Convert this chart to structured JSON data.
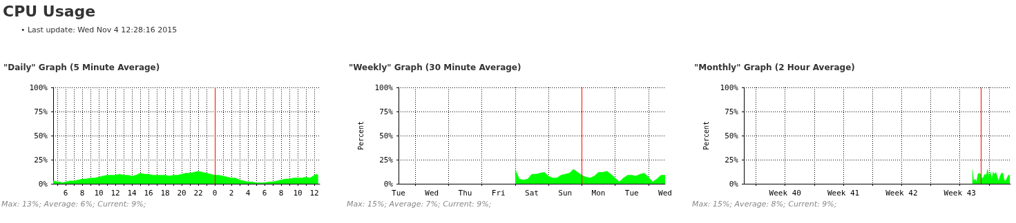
{
  "chart_data": [
    {
      "type": "other",
      "title": "CPU Usage",
      "annotations": [
        "• Last update: Wed Nov 4 12:28:16 2015"
      ]
    },
    {
      "type": "area",
      "title": "\"Daily\" Graph (5 Minute Average)",
      "color": "#00ff00",
      "grid": true,
      "xlim": [
        "2015-11-03T04:30",
        "2015-11-04T12:40"
      ],
      "ylim": [
        0,
        100
      ],
      "yticks": [
        {
          "value": 0,
          "label": "0%"
        },
        {
          "value": 25,
          "label": "25%"
        },
        {
          "value": 50,
          "label": "50%"
        },
        {
          "value": 75,
          "label": "75%"
        },
        {
          "value": 100,
          "label": "100%"
        }
      ],
      "xticks": [
        {
          "value": "2015-11-03T05:00",
          "label": null
        },
        {
          "value": "2015-11-03T06:00",
          "label": "6"
        },
        {
          "value": "2015-11-03T07:00",
          "label": null
        },
        {
          "value": "2015-11-03T08:00",
          "label": "8"
        },
        {
          "value": "2015-11-03T09:00",
          "label": null
        },
        {
          "value": "2015-11-03T10:00",
          "label": "10"
        },
        {
          "value": "2015-11-03T11:00",
          "label": null
        },
        {
          "value": "2015-11-03T12:00",
          "label": "12"
        },
        {
          "value": "2015-11-03T13:00",
          "label": null
        },
        {
          "value": "2015-11-03T14:00",
          "label": "14"
        },
        {
          "value": "2015-11-03T15:00",
          "label": null
        },
        {
          "value": "2015-11-03T16:00",
          "label": "16"
        },
        {
          "value": "2015-11-03T17:00",
          "label": null
        },
        {
          "value": "2015-11-03T18:00",
          "label": "18"
        },
        {
          "value": "2015-11-03T19:00",
          "label": null
        },
        {
          "value": "2015-11-03T20:00",
          "label": "20"
        },
        {
          "value": "2015-11-03T21:00",
          "label": null
        },
        {
          "value": "2015-11-03T22:00",
          "label": "22"
        },
        {
          "value": "2015-11-03T23:00",
          "label": null
        },
        {
          "value": "2015-11-04T00:00",
          "label": "0"
        },
        {
          "value": "2015-11-04T01:00",
          "label": null
        },
        {
          "value": "2015-11-04T02:00",
          "label": "2"
        },
        {
          "value": "2015-11-04T03:00",
          "label": null
        },
        {
          "value": "2015-11-04T04:00",
          "label": "4"
        },
        {
          "value": "2015-11-04T05:00",
          "label": null
        },
        {
          "value": "2015-11-04T06:00",
          "label": "6"
        },
        {
          "value": "2015-11-04T07:00",
          "label": null
        },
        {
          "value": "2015-11-04T08:00",
          "label": "8"
        },
        {
          "value": "2015-11-04T09:00",
          "label": null
        },
        {
          "value": "2015-11-04T10:00",
          "label": "10"
        },
        {
          "value": "2015-11-04T11:00",
          "label": null
        },
        {
          "value": "2015-11-04T12:00",
          "label": "12"
        }
      ],
      "x": [
        "2015-11-03T04:30",
        "2015-11-03T04:36",
        "2015-11-03T05:00",
        "2015-11-03T05:18",
        "2015-11-03T05:36",
        "2015-11-03T06:00",
        "2015-11-03T06:30",
        "2015-11-03T07:00",
        "2015-11-03T07:30",
        "2015-11-03T08:00",
        "2015-11-03T08:30",
        "2015-11-03T09:00",
        "2015-11-03T09:30",
        "2015-11-03T10:00",
        "2015-11-03T10:30",
        "2015-11-03T11:00",
        "2015-11-03T11:30",
        "2015-11-03T12:00",
        "2015-11-03T12:30",
        "2015-11-03T13:00",
        "2015-11-03T13:30",
        "2015-11-03T14:00",
        "2015-11-03T14:30",
        "2015-11-03T15:00",
        "2015-11-03T15:30",
        "2015-11-03T16:00",
        "2015-11-03T16:30",
        "2015-11-03T17:00",
        "2015-11-03T17:30",
        "2015-11-03T18:00",
        "2015-11-03T18:30",
        "2015-11-03T19:00",
        "2015-11-03T19:30",
        "2015-11-03T20:00",
        "2015-11-03T20:30",
        "2015-11-03T21:00",
        "2015-11-03T21:30",
        "2015-11-03T22:00",
        "2015-11-03T22:30",
        "2015-11-03T23:00",
        "2015-11-03T23:30",
        "2015-11-04T00:00",
        "2015-11-04T00:30",
        "2015-11-04T01:00",
        "2015-11-04T01:30",
        "2015-11-04T02:00",
        "2015-11-04T02:30",
        "2015-11-04T03:00",
        "2015-11-04T03:30",
        "2015-11-04T04:00",
        "2015-11-04T04:30",
        "2015-11-04T05:00",
        "2015-11-04T05:30",
        "2015-11-04T06:00",
        "2015-11-04T06:30",
        "2015-11-04T07:00",
        "2015-11-04T07:30",
        "2015-11-04T08:00",
        "2015-11-04T08:30",
        "2015-11-04T09:00",
        "2015-11-04T09:30",
        "2015-11-04T10:00",
        "2015-11-04T10:30",
        "2015-11-04T11:00",
        "2015-11-04T11:30",
        "2015-11-04T12:00",
        "2015-11-04T12:18",
        "2015-11-04T12:28"
      ],
      "values": [
        3,
        3,
        2,
        2,
        1,
        2,
        3,
        3,
        4,
        5,
        5,
        6,
        6,
        7,
        8,
        9,
        9,
        9,
        10,
        9,
        9,
        8,
        9,
        11,
        10,
        10,
        9,
        9,
        9,
        9,
        8,
        9,
        9,
        10,
        11,
        11,
        12,
        13,
        12,
        11,
        10,
        9,
        9,
        8,
        7,
        6,
        6,
        4,
        3,
        2,
        2,
        1,
        1,
        1,
        2,
        2,
        3,
        4,
        5,
        5,
        6,
        6,
        6,
        7,
        6,
        9,
        10,
        9
      ],
      "ref_lines": [
        {
          "axis": "x",
          "value": "2015-11-04T00:00",
          "color": "#ff0000"
        }
      ],
      "annotations": [
        "Max: 13%; Average: 6%; Current: 9%;"
      ]
    },
    {
      "type": "area",
      "title": "\"Weekly\" Graph (30 Minute Average)",
      "ylabel": "Percent",
      "color": "#00ff00",
      "grid": true,
      "ylim": [
        0,
        100
      ],
      "yticks": [
        {
          "value": 0,
          "label": "0%"
        },
        {
          "value": 25,
          "label": "25%"
        },
        {
          "value": 50,
          "label": "50%"
        },
        {
          "value": 75,
          "label": "75%"
        },
        {
          "value": 100,
          "label": "100%"
        }
      ],
      "categories": [
        "Tue",
        null,
        null,
        null,
        null,
        null,
        null,
        null,
        "Wed",
        null,
        null,
        null,
        null,
        null,
        null,
        null,
        "Thu",
        null,
        null,
        null,
        null,
        null,
        null,
        null,
        "Fri",
        null,
        null,
        null,
        null,
        null,
        null,
        null,
        "Sat",
        null,
        null,
        null,
        null,
        null,
        null,
        null,
        "Sun",
        null,
        null,
        null,
        null,
        null,
        null,
        null,
        "Mon",
        null,
        null,
        null,
        null,
        null,
        null,
        null,
        "Tue",
        null,
        null,
        null,
        null,
        null,
        null,
        null,
        "Wed"
      ],
      "values": [
        null,
        null,
        null,
        null,
        null,
        null,
        null,
        null,
        null,
        null,
        null,
        null,
        null,
        null,
        null,
        null,
        null,
        null,
        null,
        null,
        null,
        null,
        null,
        null,
        null,
        null,
        null,
        null,
        15,
        5,
        4,
        5,
        10,
        10,
        11,
        12,
        8,
        6,
        6,
        9,
        10,
        11,
        15,
        12,
        9,
        7,
        6,
        8,
        12,
        12,
        13,
        10,
        6,
        2,
        6,
        9,
        9,
        8,
        10,
        11,
        7,
        2,
        5,
        9,
        9
      ],
      "annotations": [
        "Max: 15%; Average: 7%; Current: 9%;"
      ]
    },
    {
      "type": "area",
      "title": "\"Monthly\" Graph (2 Hour Average)",
      "ylabel": "Percent",
      "color": "#00ff00",
      "grid": true,
      "xlim": [
        "2015-10-03T13:00",
        "2015-11-04T14:00"
      ],
      "ylim": [
        0,
        100
      ],
      "yticks": [
        {
          "value": 0,
          "label": "0%"
        },
        {
          "value": 25,
          "label": "25%"
        },
        {
          "value": 50,
          "label": "50%"
        },
        {
          "value": 75,
          "label": "75%"
        },
        {
          "value": 100,
          "label": "100%"
        }
      ],
      "xticks": [
        {
          "value": "2015-10-05T00:00",
          "label": null
        },
        {
          "value": "2015-10-08T12:00",
          "label": "Week 40"
        },
        {
          "value": "2015-10-12T00:00",
          "label": null
        },
        {
          "value": "2015-10-15T12:00",
          "label": "Week 41"
        },
        {
          "value": "2015-10-19T00:00",
          "label": null
        },
        {
          "value": "2015-10-22T12:00",
          "label": "Week 42"
        },
        {
          "value": "2015-10-26T00:00",
          "label": null
        },
        {
          "value": "2015-10-29T12:00",
          "label": "Week 43"
        },
        {
          "value": "2015-11-02T00:00",
          "label": null
        }
      ],
      "x": [
        "2015-10-31T00:00",
        "2015-10-31T04:00",
        "2015-10-31T08:00",
        "2015-10-31T12:00",
        "2015-10-31T16:00",
        "2015-10-31T20:00",
        "2015-11-01T00:00",
        "2015-11-01T04:00",
        "2015-11-01T08:00",
        "2015-11-01T12:00",
        "2015-11-01T16:00",
        "2015-11-01T20:00",
        "2015-11-02T00:00",
        "2015-11-02T04:00",
        "2015-11-02T08:00",
        "2015-11-02T12:00",
        "2015-11-02T16:00",
        "2015-11-02T20:00",
        "2015-11-03T00:00",
        "2015-11-03T04:00",
        "2015-11-03T08:00",
        "2015-11-03T12:00",
        "2015-11-03T16:00",
        "2015-11-03T20:00",
        "2015-11-04T00:00",
        "2015-11-04T04:00",
        "2015-11-04T08:00",
        "2015-11-04T12:00"
      ],
      "values": [
        15,
        3,
        5,
        2,
        10,
        11,
        10,
        5,
        7,
        10,
        9,
        15,
        8,
        12,
        5,
        12,
        10,
        12,
        7,
        3,
        8,
        11,
        11,
        4,
        3,
        6,
        9,
        9
      ],
      "ref_lines": [
        {
          "axis": "x",
          "value": "2015-11-01T00:00",
          "color": "#ff0000"
        }
      ],
      "annotations": [
        "Max: 15%; Average: 8%; Current: 9%;"
      ]
    }
  ]
}
